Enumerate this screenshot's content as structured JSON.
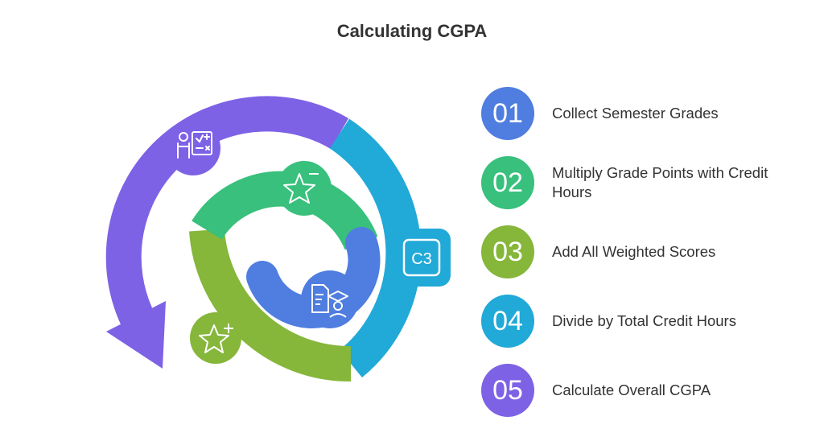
{
  "title": "Calculating CGPA",
  "colors": {
    "purple": "#7d62e6",
    "blue": "#21a9d8",
    "green": "#38c07c",
    "olive": "#86b63a",
    "royal": "#4f7de0",
    "white": "#ffffff"
  },
  "icons": {
    "outer_top": "teacher-math-board-icon",
    "ring_right": "c3-square-icon",
    "inner_top": "star-minus-icon",
    "inner_left": "star-plus-icon",
    "center": "graduate-document-icon"
  },
  "badge_text": "C3",
  "steps": [
    {
      "number": "01",
      "label": "Collect Semester Grades",
      "color": "#4f7de0"
    },
    {
      "number": "02",
      "label": "Multiply Grade Points with Credit Hours",
      "color": "#38c07c"
    },
    {
      "number": "03",
      "label": "Add All Weighted Scores",
      "color": "#86b63a"
    },
    {
      "number": "04",
      "label": "Divide by Total Credit Hours",
      "color": "#21a9d8"
    },
    {
      "number": "05",
      "label": "Calculate Overall CGPA",
      "color": "#7d62e6"
    }
  ]
}
